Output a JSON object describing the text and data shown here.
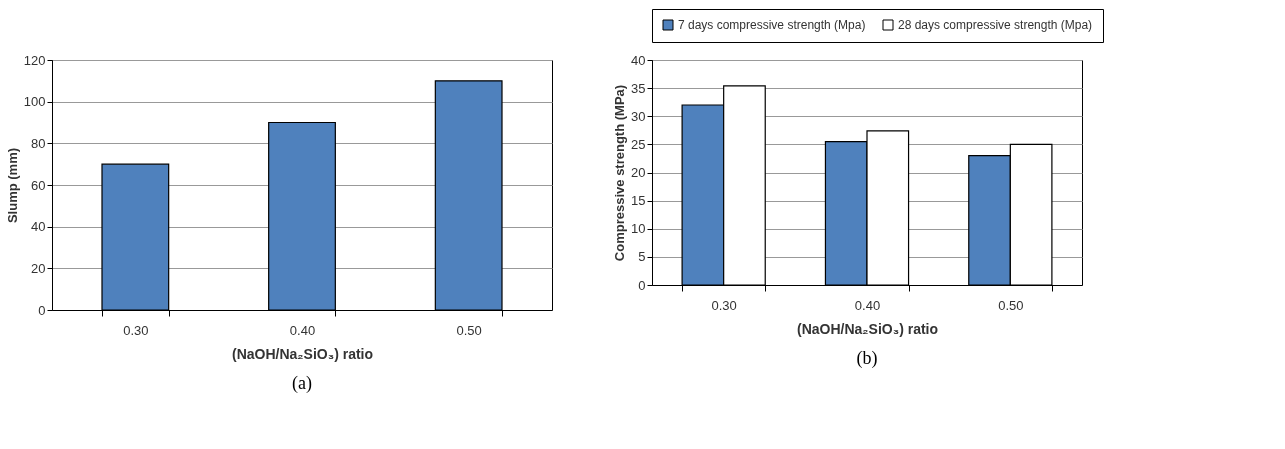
{
  "chart_data": [
    {
      "type": "bar",
      "categories": [
        "0.30",
        "0.40",
        "0.50"
      ],
      "values": [
        70,
        90,
        110
      ],
      "color": "#4f81bd",
      "xlabel": "(NaOH/Na₂SiO₃) ratio",
      "ylabel": "Slump (mm)",
      "ylim": [
        0,
        120
      ],
      "yticks": [
        0,
        20,
        40,
        60,
        80,
        100,
        120
      ],
      "grid": "y",
      "annotations": [
        "(a)"
      ]
    },
    {
      "type": "bar",
      "categories": [
        "0.30",
        "0.40",
        "0.50"
      ],
      "series": [
        {
          "name": "7 days compressive strength (Mpa)",
          "color": "#4f81bd",
          "values": [
            32,
            25.5,
            23
          ]
        },
        {
          "name": "28 days compressive strength (Mpa)",
          "color": "#ffffff",
          "values": [
            35.4,
            27.4,
            25
          ]
        }
      ],
      "xlabel": "(NaOH/Na₂SiO₃) ratio",
      "ylabel": "Compressive strength (MPa)",
      "ylim": [
        0,
        40
      ],
      "yticks": [
        0,
        5,
        10,
        15,
        20,
        25,
        30,
        35,
        40
      ],
      "grid": "y",
      "legend": "top",
      "annotations": [
        "(b)"
      ]
    }
  ]
}
